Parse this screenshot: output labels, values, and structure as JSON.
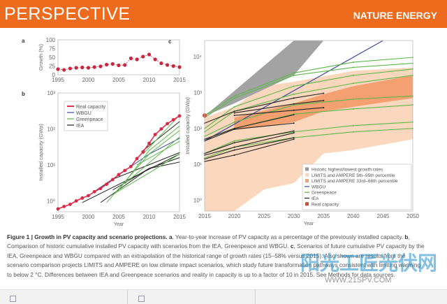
{
  "header": {
    "section": "PERSPECTIVE",
    "journal": "NATURE ENERGY"
  },
  "chart_data": [
    {
      "panel": "a",
      "type": "scatter",
      "ylabel": "Growth (%)",
      "xlim": [
        1995,
        2015
      ],
      "ylim": [
        0,
        100
      ],
      "yticks": [
        "0",
        "25",
        "50",
        "75",
        "100"
      ],
      "xticks": [
        "1995",
        "2000",
        "2005",
        "2010",
        "2015"
      ],
      "x": [
        1995,
        1996,
        1997,
        1998,
        1999,
        2000,
        2001,
        2002,
        2003,
        2004,
        2005,
        2006,
        2007,
        2008,
        2009,
        2010,
        2011,
        2012,
        2013,
        2014,
        2015
      ],
      "y": [
        16,
        14,
        18,
        20,
        21,
        20,
        22,
        24,
        29,
        31,
        27,
        28,
        47,
        44,
        52,
        58,
        44,
        33,
        28,
        25,
        22
      ]
    },
    {
      "panel": "b",
      "type": "line",
      "ylabel": "Installed capacity (GWp)",
      "xlabel": "Year",
      "yscale": "log",
      "ylim": [
        0.5,
        1000
      ],
      "xticks": [
        "1995",
        "2000",
        "2005",
        "2010",
        "2015"
      ],
      "yticks": [
        "10⁰",
        "10¹",
        "10²",
        "10³"
      ],
      "legend": [
        "Real capacity",
        "WBGU",
        "Greenpeace",
        "IEA"
      ],
      "real": {
        "x": [
          1995,
          1996,
          1997,
          1998,
          1999,
          2000,
          2001,
          2002,
          2003,
          2004,
          2005,
          2006,
          2007,
          2008,
          2009,
          2010,
          2011,
          2012,
          2013,
          2014,
          2015
        ],
        "y": [
          0.6,
          0.7,
          0.8,
          1.0,
          1.2,
          1.4,
          1.8,
          2.2,
          2.9,
          3.9,
          5.4,
          7,
          9,
          15,
          23,
          40,
          70,
          100,
          140,
          180,
          230
        ]
      },
      "series": [
        {
          "name": "IEA",
          "x": [
            1999,
            2015
          ],
          "y": [
            0.9,
            20
          ]
        },
        {
          "name": "IEA",
          "x": [
            2002,
            2010,
            2015
          ],
          "y": [
            0.9,
            8,
            12
          ]
        },
        {
          "name": "IEA",
          "x": [
            2000,
            2004,
            2015
          ],
          "y": [
            1.4,
            4,
            22
          ]
        },
        {
          "name": "IEA",
          "x": [
            2009,
            2015
          ],
          "y": [
            25,
            160
          ]
        },
        {
          "name": "IEA",
          "x": [
            2004,
            2010,
            2015
          ],
          "y": [
            2,
            8,
            16
          ]
        },
        {
          "name": "WBGU",
          "x": [
            2000,
            2010,
            2015
          ],
          "y": [
            1.4,
            20,
            55
          ]
        },
        {
          "name": "Greenpeace",
          "x": [
            2003,
            2010,
            2015
          ],
          "y": [
            0.9,
            20,
            90
          ]
        },
        {
          "name": "Greenpeace",
          "x": [
            2004,
            2010,
            2015
          ],
          "y": [
            1.5,
            6,
            20
          ]
        },
        {
          "name": "Greenpeace",
          "x": [
            2005,
            2010,
            2015
          ],
          "y": [
            2,
            25,
            120
          ]
        },
        {
          "name": "Greenpeace",
          "x": [
            2009,
            2015
          ],
          "y": [
            20,
            240
          ]
        },
        {
          "name": "Greenpeace",
          "x": [
            2006,
            2015
          ],
          "y": [
            3,
            60
          ]
        },
        {
          "name": "Greenpeace",
          "x": [
            2008,
            2015
          ],
          "y": [
            10,
            45
          ]
        }
      ]
    },
    {
      "panel": "c",
      "type": "line",
      "ylabel": "Installed capacity (GWp)",
      "xlabel": "Year",
      "yscale": "log",
      "ylim": [
        0.5,
        28000
      ],
      "xticks": [
        "2015",
        "2020",
        "2025",
        "2030",
        "2035",
        "2040",
        "2045",
        "2050"
      ],
      "yticks": [
        "10⁰",
        "10¹",
        "10²",
        "10³",
        "10⁴"
      ],
      "legend": [
        "Historic highest/lowest growth rates",
        "LIMITS and AMPERE 5th–95th percentile",
        "LIMITS and AMPERE 33rd–66th percentile",
        "WBGU",
        "Greenpeace",
        "IEA",
        "Real capacity"
      ],
      "historic_band": {
        "x": [
          2015,
          2030,
          2050,
          2050,
          2035,
          2030,
          2020,
          2015
        ],
        "y": [
          220,
          28000,
          28000,
          28000,
          28000,
          3000,
          500,
          220
        ]
      },
      "p5_95": {
        "x": [
          2015,
          2020,
          2025,
          2030,
          2035,
          2040,
          2050,
          2050,
          2040,
          2030,
          2025,
          2020,
          2015
        ],
        "y": [
          0.5,
          0.5,
          2,
          3,
          20,
          25,
          50,
          5000,
          4000,
          2000,
          1500,
          400,
          200
        ]
      },
      "p33_66": {
        "x": [
          2020,
          2030,
          2035,
          2040,
          2050,
          2050,
          2040,
          2035,
          2030,
          2020
        ],
        "y": [
          90,
          150,
          300,
          400,
          700,
          3000,
          1500,
          900,
          500,
          200
        ]
      },
      "wbgu": {
        "x": [
          2015,
          2050
        ],
        "y": [
          45,
          300000
        ]
      },
      "series": [
        {
          "name": "Greenpeace",
          "x": [
            2015,
            2020,
            2030,
            2040,
            2050
          ],
          "y": [
            230,
            800,
            3500,
            7000,
            9500
          ]
        },
        {
          "name": "Greenpeace",
          "x": [
            2015,
            2020,
            2030,
            2040,
            2050
          ],
          "y": [
            200,
            700,
            3000,
            5000,
            6500
          ]
        },
        {
          "name": "Greenpeace",
          "x": [
            2015,
            2020,
            2030,
            2040,
            2050
          ],
          "y": [
            100,
            400,
            1500,
            3000,
            4500
          ]
        },
        {
          "name": "Greenpeace",
          "x": [
            2015,
            2020,
            2030,
            2040,
            2050
          ],
          "y": [
            80,
            300,
            900,
            1800,
            3000
          ]
        },
        {
          "name": "Greenpeace",
          "x": [
            2015,
            2020,
            2030,
            2040,
            2050
          ],
          "y": [
            60,
            150,
            450,
            650,
            800
          ]
        },
        {
          "name": "Greenpeace",
          "x": [
            2015,
            2020,
            2030,
            2040,
            2050
          ],
          "y": [
            50,
            100,
            250,
            350,
            450
          ]
        },
        {
          "name": "Greenpeace",
          "x": [
            2015,
            2020,
            2030,
            2040,
            2050
          ],
          "y": [
            20,
            45,
            80,
            120,
            150
          ]
        },
        {
          "name": "Greenpeace",
          "x": [
            2015,
            2020,
            2030,
            2040,
            2050
          ],
          "y": [
            15,
            30,
            55,
            80,
            100
          ]
        },
        {
          "name": "IEA",
          "x": [
            2015,
            2020,
            2030,
            2035
          ],
          "y": [
            140,
            300,
            700,
            950
          ]
        },
        {
          "name": "IEA",
          "x": [
            2020,
            2030,
            2035
          ],
          "y": [
            270,
            480,
            600
          ]
        },
        {
          "name": "IEA",
          "x": [
            2020,
            2030,
            2035
          ],
          "y": [
            230,
            320,
            380
          ]
        },
        {
          "name": "IEA",
          "x": [
            2015,
            2020,
            2030
          ],
          "y": [
            50,
            100,
            240
          ]
        },
        {
          "name": "IEA",
          "x": [
            2015,
            2020,
            2030
          ],
          "y": [
            45,
            95,
            140
          ]
        },
        {
          "name": "IEA",
          "x": [
            2015,
            2020,
            2030
          ],
          "y": [
            20,
            40,
            85
          ]
        },
        {
          "name": "IEA",
          "x": [
            2015,
            2020,
            2030
          ],
          "y": [
            18,
            30,
            75
          ]
        },
        {
          "name": "IEA",
          "x": [
            2015,
            2020,
            2030
          ],
          "y": [
            14,
            25,
            55
          ]
        },
        {
          "name": "IEA",
          "x": [
            2015,
            2020,
            2030
          ],
          "y": [
            12,
            18,
            50
          ]
        }
      ]
    }
  ],
  "caption": {
    "title": "Figure 1 | Growth in PV capacity and scenario projections.",
    "a_label": "a",
    "a_text": ", Year-to-year increase of PV capacity as a percentage of the previously installed capacity.",
    "b_label": "b",
    "b_text": ", Comparison of historic cumulative installed PV capacity with scenarios from the IEA, Greenpeace and WBGU.",
    "c_label": "c",
    "c_text": ", Scenarios of future cumulative PV capacity by the IEA, Greenpeace and WBGU compared with an extrapolation of the historical range of growth rates (15–58% versus 2015). Also shown are results from the scenario comparison projects LIMITS and AMPERE on low climate impact scenarios, which study future transformation pathways consistent with limiting warming to below 2 °C. Differences between IEA and Greenpeace scenarios and reality in capacity is up to a factor of 10 in 2015. See Methods for data sources."
  },
  "watermark": {
    "text": "阳光工匠光伏网",
    "url": "WWW.21SPV.COM"
  }
}
